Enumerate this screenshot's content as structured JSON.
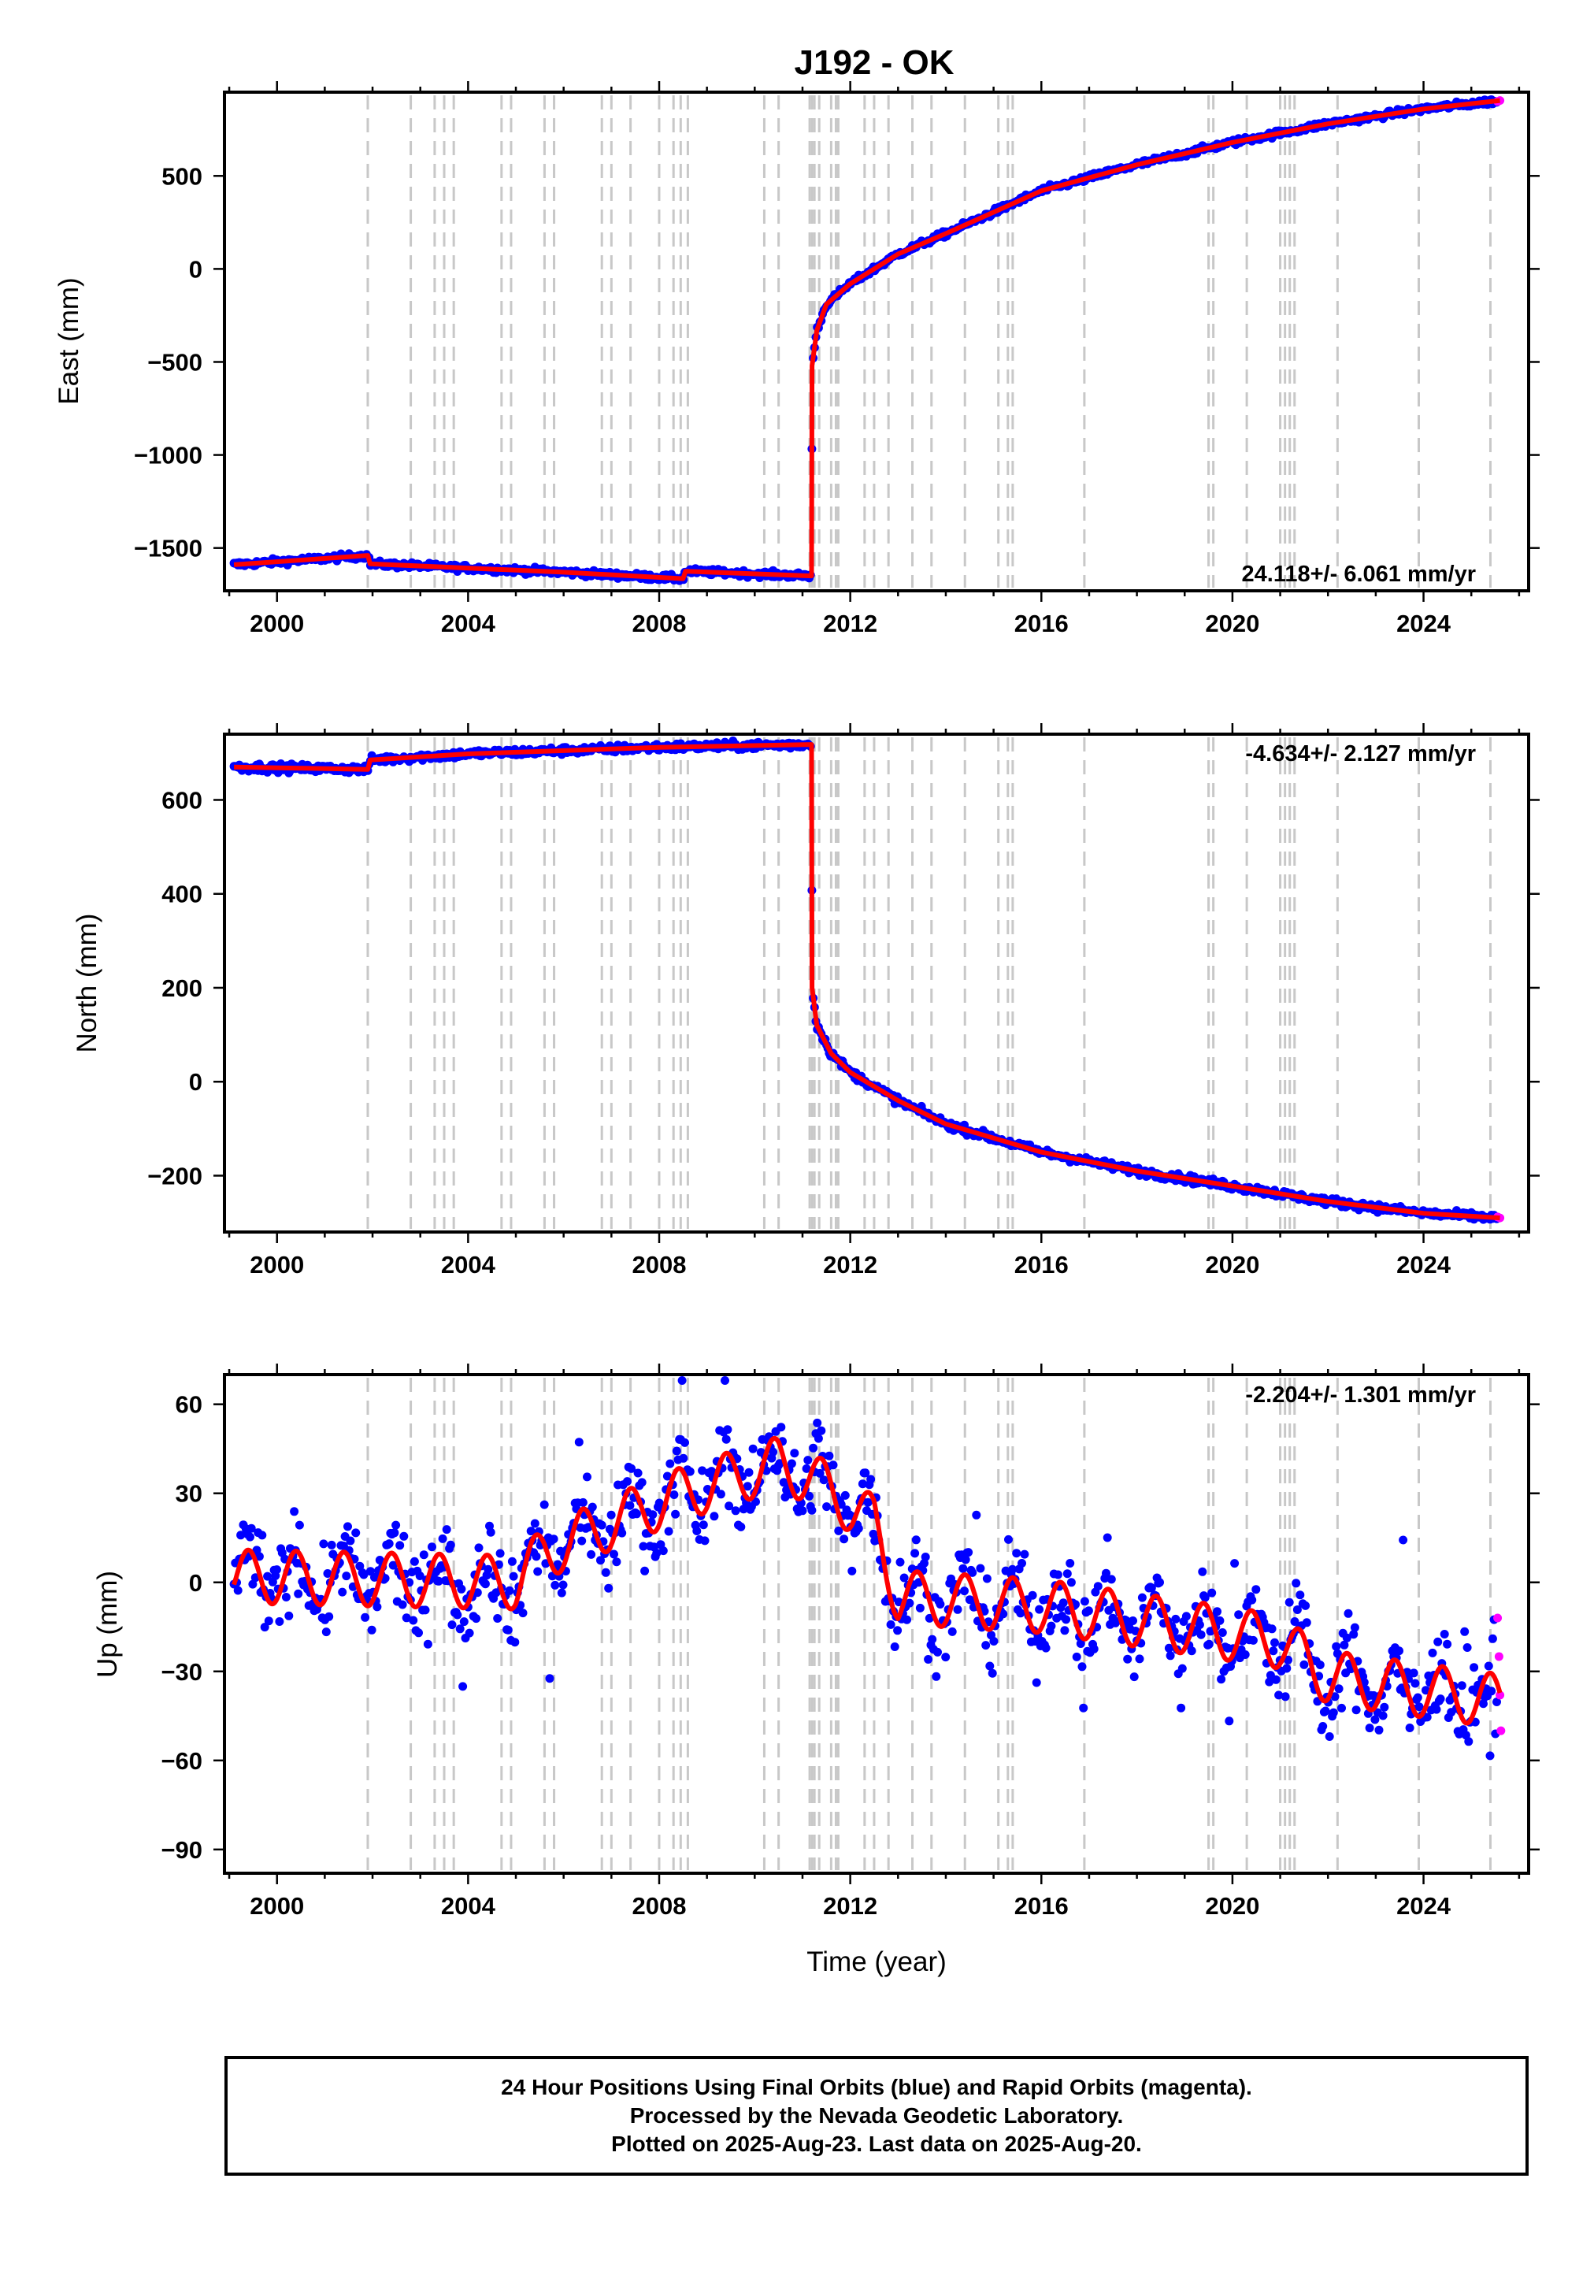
{
  "title": "J192 - OK",
  "colors": {
    "final": "#0000ff",
    "rapid": "#ff00ff",
    "model": "#ff0000",
    "events": "#c8c8c8"
  },
  "footer": {
    "line1": "24 Hour Positions Using Final Orbits (blue) and Rapid Orbits (magenta).",
    "line2": "Processed by the Nevada Geodetic Laboratory.",
    "line3": "Plotted on 2025-Aug-23. Last data on 2025-Aug-20."
  },
  "chart_data": [
    {
      "type": "scatter",
      "id": "east",
      "title": "",
      "ylabel": "East (mm)",
      "xlabel": "",
      "rate": "24.118+/- 6.061 mm/yr",
      "rate_position": "bottom-right",
      "xlim": [
        1998.9,
        2026.2
      ],
      "ylim": [
        -1730,
        950
      ],
      "yticks": [
        -1500,
        -1000,
        -500,
        0,
        500
      ],
      "xticks": [
        2000,
        2004,
        2008,
        2012,
        2016,
        2020,
        2024
      ],
      "grid": false,
      "noise_mm": 12,
      "model": {
        "x": [
          1999.1,
          2001.9,
          2001.95,
          2006.0,
          2008.5,
          2008.55,
          2011.19,
          2011.2,
          2011.3,
          2011.5,
          2012.0,
          2013.0,
          2014.0,
          2016.0,
          2018.0,
          2020.0,
          2022.0,
          2024.0,
          2025.6
        ],
        "y": [
          -1590,
          -1540,
          -1585,
          -1630,
          -1665,
          -1625,
          -1650,
          -520,
          -330,
          -190,
          -80,
          80,
          190,
          420,
          560,
          680,
          780,
          860,
          905
        ]
      },
      "rapid": {
        "x": [
          2025.55,
          2025.6
        ],
        "y": [
          900,
          905
        ]
      }
    },
    {
      "type": "scatter",
      "id": "north",
      "title": "",
      "ylabel": "North (mm)",
      "xlabel": "",
      "rate": "-4.634+/- 2.127 mm/yr",
      "rate_position": "top-right",
      "xlim": [
        1998.9,
        2026.2
      ],
      "ylim": [
        -320,
        740
      ],
      "yticks": [
        -200,
        0,
        200,
        400,
        600
      ],
      "xticks": [
        2000,
        2004,
        2008,
        2012,
        2016,
        2020,
        2024
      ],
      "grid": false,
      "noise_mm": 6,
      "model": {
        "x": [
          1999.1,
          2001.9,
          2001.95,
          2004.0,
          2008.0,
          2011.19,
          2011.2,
          2011.3,
          2011.6,
          2012.0,
          2013.0,
          2014.0,
          2016.0,
          2018.0,
          2020.0,
          2022.0,
          2024.0,
          2025.6
        ],
        "y": [
          670,
          665,
          685,
          698,
          712,
          718,
          200,
          120,
          60,
          20,
          -40,
          -90,
          -150,
          -190,
          -222,
          -255,
          -280,
          -290
        ]
      },
      "rapid": {
        "x": [
          2025.55,
          2025.6
        ],
        "y": [
          -288,
          -290
        ]
      }
    },
    {
      "type": "scatter",
      "id": "up",
      "title": "",
      "ylabel": "Up (mm)",
      "xlabel": "Time (year)",
      "rate": "-2.204+/- 1.301 mm/yr",
      "rate_position": "top-right",
      "xlim": [
        1998.9,
        2026.2
      ],
      "ylim": [
        -98,
        70
      ],
      "yticks": [
        -90,
        -60,
        -30,
        0,
        30,
        60
      ],
      "xticks": [
        2000,
        2004,
        2008,
        2012,
        2016,
        2020,
        2024
      ],
      "grid": false,
      "noise_mm": 10,
      "seasonal_amplitude": 9,
      "trend": {
        "x": [
          1999.1,
          2005.0,
          2005.6,
          2007.0,
          2008.5,
          2010.5,
          2011.2,
          2012.5,
          2013.0,
          2016.0,
          2019.0,
          2021.0,
          2022.0,
          2025.6
        ],
        "y": [
          2,
          0,
          10,
          20,
          30,
          40,
          35,
          20,
          -5,
          -8,
          -15,
          -20,
          -32,
          -40
        ]
      },
      "rapid": {
        "x": [
          2025.55,
          2025.58,
          2025.6,
          2025.62
        ],
        "y": [
          -12,
          -25,
          -38,
          -50
        ]
      }
    }
  ],
  "events_x": [
    2001.9,
    2002.8,
    2003.3,
    2003.5,
    2003.7,
    2004.7,
    2004.9,
    2005.6,
    2005.8,
    2006.8,
    2007.0,
    2007.4,
    2008.0,
    2008.3,
    2008.45,
    2008.6,
    2010.2,
    2010.5,
    2011.15,
    2011.2,
    2011.25,
    2011.35,
    2011.6,
    2011.7,
    2011.75,
    2012.3,
    2012.5,
    2012.8,
    2013.3,
    2013.7,
    2014.4,
    2015.1,
    2015.3,
    2015.4,
    2016.9,
    2019.5,
    2019.6,
    2020.3,
    2021.0,
    2021.1,
    2021.2,
    2021.3,
    2022.2,
    2023.9,
    2025.4
  ]
}
